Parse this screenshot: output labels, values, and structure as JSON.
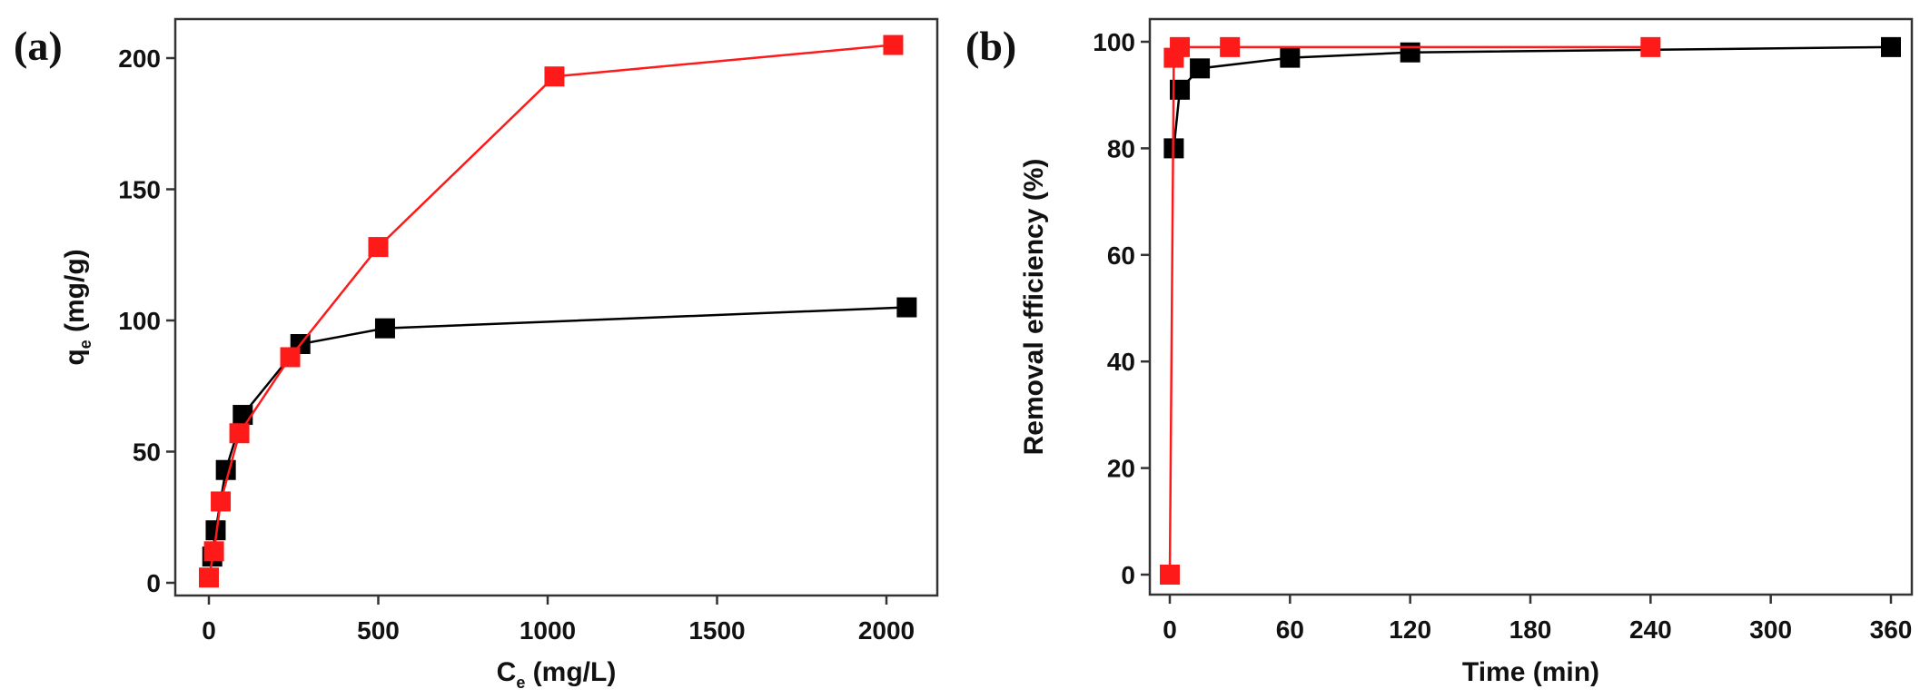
{
  "chart_data": [
    {
      "type": "line",
      "panel_label": "(a)",
      "xlabel": "C",
      "xlabel_sub": "e",
      "xlabel_unit": " (mg/L)",
      "ylabel": "q",
      "ylabel_sub": "e",
      "ylabel_unit": " (mg/g)",
      "xlim": [
        -60,
        2130
      ],
      "ylim": [
        -14,
        211
      ],
      "xticks": [
        0,
        500,
        1000,
        1500,
        2000
      ],
      "yticks": [
        0,
        50,
        100,
        150,
        200
      ],
      "series": [
        {
          "name": "black",
          "color": "#000000",
          "x": [
            10,
            20,
            50,
            100,
            270,
            520,
            2060
          ],
          "y": [
            10,
            20,
            43,
            64,
            91,
            97,
            105
          ]
        },
        {
          "name": "red",
          "color": "#ff1a1a",
          "x": [
            0,
            15,
            35,
            90,
            240,
            500,
            1020,
            2020
          ],
          "y": [
            2,
            12,
            31,
            57,
            86,
            128,
            193,
            205
          ]
        }
      ]
    },
    {
      "type": "line",
      "panel_label": "(b)",
      "xlabel": "Time (min)",
      "ylabel": "Removal efficiency (%)",
      "xlim": [
        -10,
        365
      ],
      "ylim": [
        -5,
        104
      ],
      "xticks": [
        0,
        60,
        120,
        180,
        240,
        300,
        360
      ],
      "yticks": [
        0,
        20,
        40,
        60,
        80,
        100
      ],
      "series": [
        {
          "name": "black",
          "color": "#000000",
          "x": [
            2,
            5,
            15,
            60,
            120,
            360
          ],
          "y": [
            80,
            91,
            95,
            97,
            98,
            99
          ]
        },
        {
          "name": "red",
          "color": "#ff1a1a",
          "x": [
            0,
            2,
            5,
            30,
            240
          ],
          "y": [
            0,
            97,
            99,
            99,
            99
          ]
        }
      ]
    }
  ]
}
